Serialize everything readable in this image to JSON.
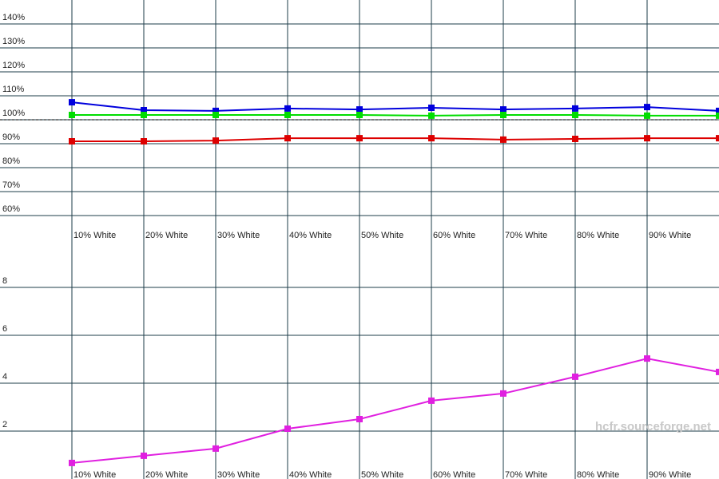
{
  "chart_data": [
    {
      "type": "line",
      "categories": [
        "10% White",
        "20% White",
        "30% White",
        "40% White",
        "50% White",
        "60% White",
        "70% White",
        "80% White",
        "90% White",
        null
      ],
      "series": [
        {
          "color": "#0000dd",
          "values": [
            107.3,
            104,
            103.7,
            104.7,
            104.3,
            105,
            104.3,
            104.7,
            105.3,
            103.7
          ]
        },
        {
          "color": "#00dd00",
          "values": [
            102,
            102,
            102,
            102,
            102,
            101.7,
            102,
            102,
            101.7,
            101.7
          ]
        },
        {
          "color": "#dd0000",
          "values": [
            91,
            91,
            91.3,
            92.3,
            92.3,
            92.3,
            91.7,
            92,
            92.3,
            92.3
          ]
        }
      ],
      "ylim": [
        60,
        150
      ],
      "yticks": [
        {
          "value": 60,
          "label": "60%"
        },
        {
          "value": 70,
          "label": "70%"
        },
        {
          "value": 80,
          "label": "80%"
        },
        {
          "value": 90,
          "label": "90%"
        },
        {
          "value": 100,
          "label": "100%"
        },
        {
          "value": 110,
          "label": "110%"
        },
        {
          "value": 120,
          "label": "120%"
        },
        {
          "value": 130,
          "label": "130%"
        },
        {
          "value": 140,
          "label": "140%"
        }
      ],
      "reference_line": 100,
      "grid": true
    },
    {
      "type": "line",
      "categories": [
        "10% White",
        "20% White",
        "30% White",
        "40% White",
        "50% White",
        "60% White",
        "70% White",
        "80% White",
        "90% White",
        null
      ],
      "series": [
        {
          "color": "#e020e0",
          "values": [
            0.67,
            0.97,
            1.27,
            2.1,
            2.5,
            3.27,
            3.57,
            4.27,
            5.03,
            4.47
          ]
        }
      ],
      "ylim": [
        0,
        10
      ],
      "yticks": [
        2,
        4,
        6,
        8
      ],
      "annotation": "hcfr.sourceforge.net",
      "grid": true
    }
  ]
}
